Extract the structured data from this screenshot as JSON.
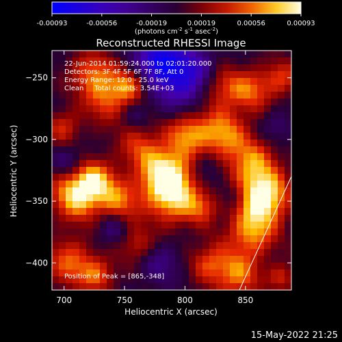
{
  "colorbar": {
    "ticks": [
      "-0.00093",
      "-0.00056",
      "-0.00019",
      "0.00019",
      "0.00056",
      "0.00093"
    ],
    "unit_main": "(photons cm",
    "unit_exp1": "-2",
    "unit_mid": " s",
    "unit_exp2": "-1",
    "unit_end": " asec",
    "unit_exp3": "-2",
    "unit_close": ")",
    "range": [
      -0.00093,
      0.00093
    ]
  },
  "chart_data": {
    "type": "heatmap",
    "title": "Reconstructed RHESSI Image",
    "xlabel": "Heliocentric X (arcsec)",
    "ylabel": "Heliocentric Y (arcsec)",
    "xlim": [
      690,
      888
    ],
    "ylim": [
      -422,
      -228
    ],
    "xticks": [
      700,
      750,
      800,
      850
    ],
    "yticks": [
      -250,
      -300,
      -350,
      -400
    ],
    "annotations": [
      "22-Jun-2014 01:59:24.000 to 02:01:20.000",
      "Detectors: 3F 4F 5F 6F 7F 8F, Att 0",
      "Energy Range: 12.0 - 25.0 keV",
      "Clean     Total counts: 3.54E+03"
    ],
    "peak_label": "Position of Peak = [865,-348]",
    "peak": [
      865,
      -348
    ],
    "limb_line": [
      [
        845,
        -422
      ],
      [
        888,
        -330
      ]
    ],
    "blobs": [
      {
        "x": 865,
        "y": -347,
        "r": 14,
        "v": 0.00093
      },
      {
        "x": 790,
        "y": -345,
        "r": 16,
        "v": 0.0008
      },
      {
        "x": 783,
        "y": -325,
        "r": 14,
        "v": 0.00072
      },
      {
        "x": 802,
        "y": -295,
        "r": 12,
        "v": 0.00058
      },
      {
        "x": 830,
        "y": -295,
        "r": 14,
        "v": 0.00062
      },
      {
        "x": 855,
        "y": -320,
        "r": 15,
        "v": 0.00058
      },
      {
        "x": 710,
        "y": -345,
        "r": 14,
        "v": 0.00078
      },
      {
        "x": 725,
        "y": -333,
        "r": 12,
        "v": 0.00058
      },
      {
        "x": 745,
        "y": -350,
        "r": 13,
        "v": 0.00052
      },
      {
        "x": 736,
        "y": -265,
        "r": 14,
        "v": 0.00055
      },
      {
        "x": 755,
        "y": -255,
        "r": 10,
        "v": 0.00042
      },
      {
        "x": 722,
        "y": -245,
        "r": 12,
        "v": 0.00046
      },
      {
        "x": 830,
        "y": -258,
        "r": 12,
        "v": 0.00048
      },
      {
        "x": 855,
        "y": -260,
        "r": 12,
        "v": 0.0005
      },
      {
        "x": 880,
        "y": -250,
        "r": 10,
        "v": 0.00042
      },
      {
        "x": 762,
        "y": -305,
        "r": 12,
        "v": 0.0004
      },
      {
        "x": 855,
        "y": -375,
        "r": 14,
        "v": 0.00062
      },
      {
        "x": 843,
        "y": -410,
        "r": 13,
        "v": 0.00058
      },
      {
        "x": 820,
        "y": -400,
        "r": 11,
        "v": 0.00045
      },
      {
        "x": 705,
        "y": -400,
        "r": 14,
        "v": 0.00052
      },
      {
        "x": 728,
        "y": -410,
        "r": 10,
        "v": 0.00046
      },
      {
        "x": 760,
        "y": -385,
        "r": 10,
        "v": 0.00038
      },
      {
        "x": 880,
        "y": -412,
        "r": 8,
        "v": 0.00038
      },
      {
        "x": 815,
        "y": -355,
        "r": 9,
        "v": 0.00036
      },
      {
        "x": 700,
        "y": -290,
        "r": 10,
        "v": 0.00038
      },
      {
        "x": 798,
        "y": -248,
        "r": 18,
        "v": -0.00075
      },
      {
        "x": 775,
        "y": -235,
        "r": 12,
        "v": -0.0006
      },
      {
        "x": 740,
        "y": -372,
        "r": 10,
        "v": -0.0003
      },
      {
        "x": 780,
        "y": -400,
        "r": 12,
        "v": -0.00028
      },
      {
        "x": 705,
        "y": -318,
        "r": 9,
        "v": -0.00032
      },
      {
        "x": 876,
        "y": -290,
        "r": 9,
        "v": -0.00025
      },
      {
        "x": 818,
        "y": -325,
        "r": 10,
        "v": -0.00028
      },
      {
        "x": 840,
        "y": -345,
        "r": 8,
        "v": -0.00025
      },
      {
        "x": 760,
        "y": -280,
        "r": 8,
        "v": -0.0002
      }
    ]
  },
  "footer": {
    "date_label": "15-May-2022 21:25"
  }
}
